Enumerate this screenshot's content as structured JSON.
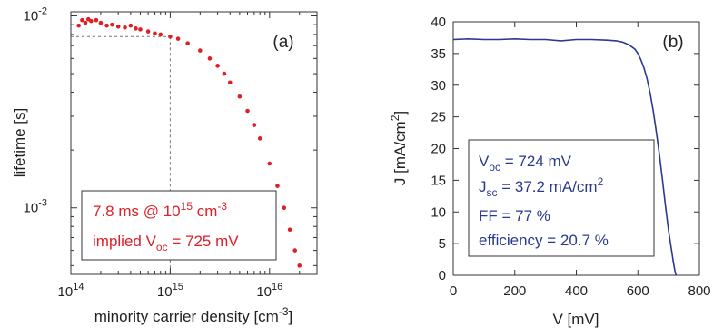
{
  "chart_data": [
    {
      "type": "scatter",
      "panel_label": "(a)",
      "xlabel": "minority carrier density [cm",
      "xlabel_sup": "-3",
      "xlabel_end": "]",
      "ylabel": "lifetime [s]",
      "xscale": "log",
      "yscale": "log",
      "xlim": [
        100000000000000.0,
        3e+16
      ],
      "ylim": [
        0.00045,
        0.0105
      ],
      "x_ticks": [
        {
          "value": 100000000000000.0,
          "base": "10",
          "exp": "14"
        },
        {
          "value": 1000000000000000.0,
          "base": "10",
          "exp": "15"
        },
        {
          "value": 1e+16,
          "base": "10",
          "exp": "16"
        }
      ],
      "y_ticks": [
        {
          "value": 0.01,
          "base": "10",
          "exp": "-2"
        },
        {
          "value": 0.001,
          "base": "10",
          "exp": "-3"
        }
      ],
      "marker_color": "#dd1f26",
      "series": [
        {
          "x": [
            120000000000000.0,
            130000000000000.0,
            140000000000000.0,
            150000000000000.0,
            160000000000000.0,
            180000000000000.0,
            200000000000000.0,
            230000000000000.0,
            260000000000000.0,
            300000000000000.0,
            350000000000000.0,
            400000000000000.0,
            450000000000000.0,
            500000000000000.0,
            600000000000000.0,
            700000000000000.0,
            800000000000000.0,
            1000000000000000.0,
            1200000000000000.0,
            1500000000000000.0,
            2000000000000000.0,
            2500000000000000.0,
            3000000000000000.0,
            3500000000000000.0,
            4000000000000000.0,
            5000000000000000.0,
            6000000000000000.0,
            7000000000000000.0,
            8000000000000000.0,
            1e+16,
            1.2e+16,
            1.4e+16,
            1.6e+16,
            1.8e+16,
            2e+16
          ],
          "y": [
            0.0089,
            0.0095,
            0.0092,
            0.0096,
            0.0094,
            0.0095,
            0.0092,
            0.0089,
            0.009,
            0.0088,
            0.0087,
            0.0089,
            0.0086,
            0.0085,
            0.0083,
            0.0081,
            0.008,
            0.0078,
            0.0076,
            0.0072,
            0.0066,
            0.006,
            0.0055,
            0.005,
            0.0045,
            0.0038,
            0.0032,
            0.0027,
            0.0023,
            0.0017,
            0.0013,
            0.001,
            0.00077,
            0.0006,
            0.0005
          ]
        }
      ],
      "reference_point": {
        "x": 1000000000000000.0,
        "y": 0.0078
      },
      "annotation": {
        "color": "#dd1f26",
        "line1_a": "7.8 ms @ 10",
        "line1_sup": "15",
        "line1_b": " cm",
        "line1_sup2": "-3",
        "line2_a": "implied V",
        "line2_sub": "oc",
        "line2_b": " = 725 mV"
      }
    },
    {
      "type": "line",
      "panel_label": "(b)",
      "xlabel": "V [mV]",
      "ylabel": "J [mA/cm",
      "ylabel_sup": "2",
      "ylabel_end": "]",
      "xlim": [
        0,
        800
      ],
      "ylim": [
        0,
        40
      ],
      "x_ticks": [
        "0",
        "200",
        "400",
        "600",
        "800"
      ],
      "y_ticks": [
        "0",
        "5",
        "10",
        "15",
        "20",
        "25",
        "30",
        "35",
        "40"
      ],
      "line_color": "#2b3990",
      "series": [
        {
          "x": [
            0,
            50,
            100,
            150,
            200,
            250,
            300,
            350,
            400,
            450,
            500,
            530,
            550,
            570,
            590,
            600,
            610,
            620,
            630,
            640,
            650,
            660,
            670,
            680,
            690,
            700,
            710,
            715,
            720,
            724
          ],
          "y": [
            37.2,
            37.3,
            37.2,
            37.2,
            37.3,
            37.2,
            37.2,
            37.0,
            37.2,
            37.2,
            37.1,
            37.0,
            36.8,
            36.4,
            35.7,
            35.0,
            34.0,
            32.7,
            31.0,
            28.7,
            25.9,
            22.6,
            19.0,
            15.0,
            10.9,
            7.0,
            3.8,
            2.2,
            0.8,
            0
          ]
        }
      ],
      "annotation": {
        "color": "#2b3990",
        "line1_a": "V",
        "line1_sub": "oc",
        "line1_b": " = 724 mV",
        "line2_a": "J",
        "line2_sub": "sc",
        "line2_b": " = 37.2 mA/cm",
        "line2_sup": "2",
        "line3": "FF = 77 %",
        "line4": "efficiency = 20.7 %"
      }
    }
  ]
}
